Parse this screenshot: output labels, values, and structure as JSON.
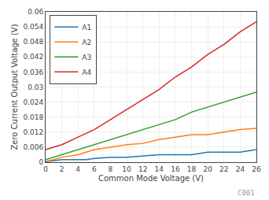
{
  "chart_data": {
    "type": "line",
    "xlabel": "Common Mode Voltage (V)",
    "ylabel": "Zero Current Output Voltage (V)",
    "xlim": [
      0,
      26
    ],
    "ylim": [
      0,
      0.06
    ],
    "xticks": [
      0,
      2,
      4,
      6,
      8,
      10,
      12,
      14,
      16,
      18,
      20,
      22,
      24,
      26
    ],
    "yticks": [
      0,
      0.006,
      0.012,
      0.018,
      0.024,
      0.03,
      0.036,
      0.042,
      0.048,
      0.054,
      0.06
    ],
    "series": [
      {
        "name": "A1",
        "x": [
          0,
          1,
          2,
          3,
          4,
          5,
          6,
          8,
          10,
          12,
          14,
          16,
          18,
          20,
          22,
          24,
          26
        ],
        "values": [
          0.0002,
          0.0005,
          0.001,
          0.001,
          0.001,
          0.001,
          0.0015,
          0.002,
          0.002,
          0.0025,
          0.003,
          0.003,
          0.003,
          0.004,
          0.004,
          0.004,
          0.005
        ]
      },
      {
        "name": "A2",
        "x": [
          0,
          1,
          2,
          3,
          4,
          5,
          6,
          8,
          10,
          12,
          14,
          16,
          18,
          20,
          22,
          24,
          26
        ],
        "values": [
          0.0003,
          0.001,
          0.002,
          0.0025,
          0.003,
          0.004,
          0.005,
          0.006,
          0.007,
          0.0075,
          0.009,
          0.01,
          0.011,
          0.011,
          0.012,
          0.013,
          0.0135
        ]
      },
      {
        "name": "A3",
        "x": [
          0,
          1,
          2,
          4,
          6,
          8,
          10,
          12,
          14,
          16,
          18,
          20,
          22,
          24,
          26
        ],
        "values": [
          0.001,
          0.002,
          0.003,
          0.005,
          0.007,
          0.009,
          0.011,
          0.013,
          0.015,
          0.017,
          0.02,
          0.022,
          0.024,
          0.026,
          0.028
        ]
      },
      {
        "name": "A4",
        "x": [
          0,
          1,
          2,
          4,
          6,
          8,
          10,
          12,
          14,
          16,
          18,
          20,
          22,
          24,
          26
        ],
        "values": [
          0.005,
          0.006,
          0.007,
          0.01,
          0.013,
          0.017,
          0.021,
          0.025,
          0.029,
          0.034,
          0.038,
          0.043,
          0.047,
          0.052,
          0.056
        ]
      }
    ],
    "grid": true,
    "legend": "upper left",
    "annotations": [
      "C001"
    ]
  }
}
